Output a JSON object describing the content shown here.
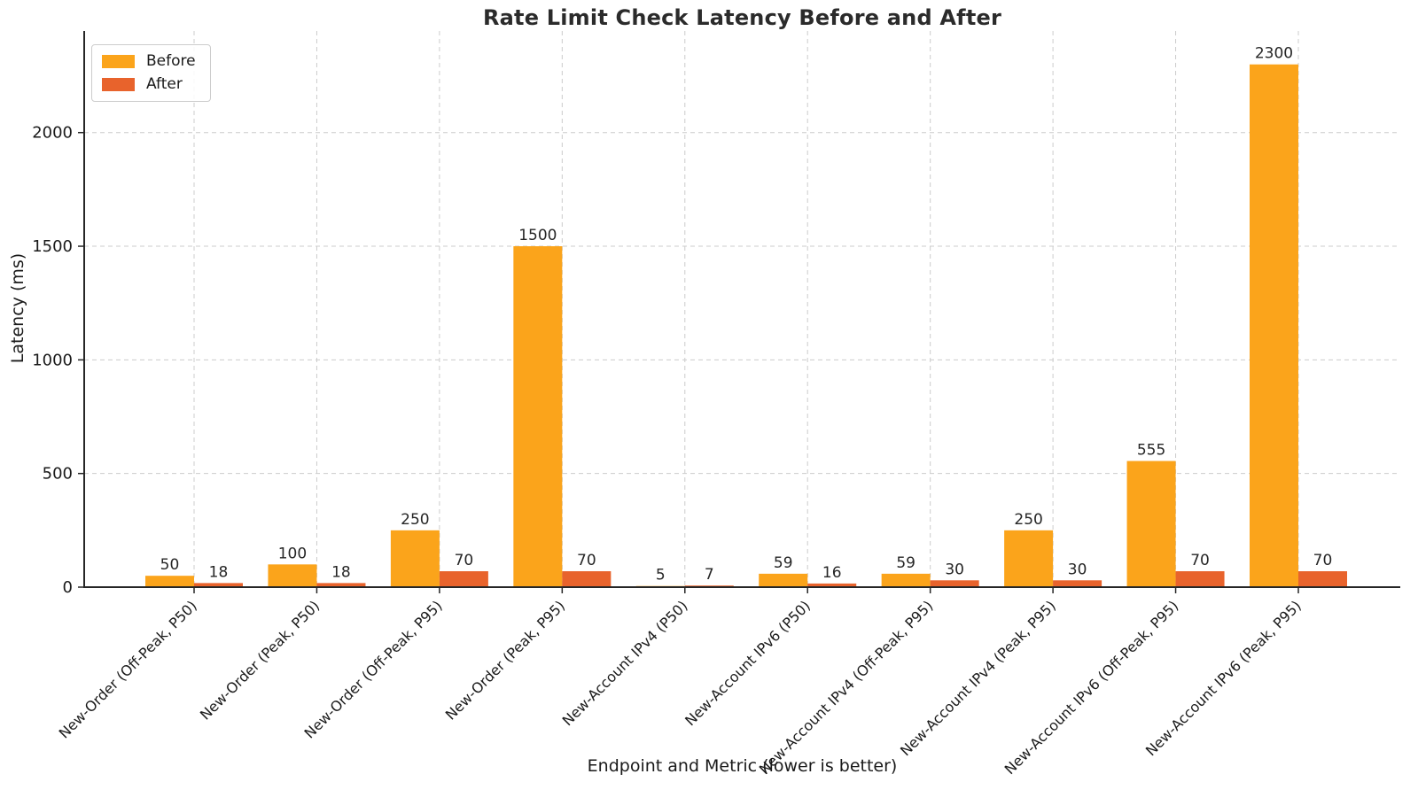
{
  "chart_data": {
    "type": "bar",
    "title": "Rate Limit Check Latency Before and After",
    "xlabel": "Endpoint and Metric (lower is better)",
    "ylabel": "Latency (ms)",
    "categories": [
      "New-Order (Off-Peak, P50)",
      "New-Order (Peak, P50)",
      "New-Order (Off-Peak, P95)",
      "New-Order (Peak, P95)",
      "New-Account IPv4 (P50)",
      "New-Account IPv6 (P50)",
      "New-Account IPv4 (Off-Peak, P95)",
      "New-Account IPv4 (Peak, P95)",
      "New-Account IPv6 (Off-Peak, P95)",
      "New-Account IPv6 (Peak, P95)"
    ],
    "series": [
      {
        "name": "Before",
        "color": "#FBA41B",
        "values": [
          50,
          100,
          250,
          1500,
          5,
          59,
          59,
          250,
          555,
          2300
        ]
      },
      {
        "name": "After",
        "color": "#E8632C",
        "values": [
          18,
          18,
          70,
          70,
          7,
          16,
          30,
          30,
          70,
          70
        ]
      }
    ],
    "bar_value_labels": true,
    "yticks": [
      0,
      500,
      1000,
      1500,
      2000
    ],
    "ylim": [
      0,
      2447
    ],
    "grid": true,
    "grid_style": "dashed",
    "legend_position": "upper left",
    "colors": {
      "grid": "#cccccc",
      "axis": "#262626",
      "tick_text": "#1a1a1a",
      "value_label_text": "#262626",
      "title_text": "#2b2b2b"
    }
  }
}
